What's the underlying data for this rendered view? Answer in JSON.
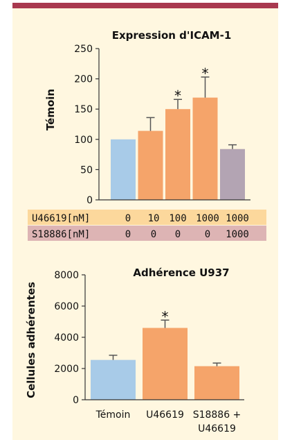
{
  "colors": {
    "top_bar": "#a8394f",
    "panel": "#fff7e0",
    "bar_control": "#a8cbe8",
    "bar_treatment": "#f5a46a",
    "bar_blocked": "#b3a4b3",
    "row_u46619": "#fcd89c",
    "row_s18886": "#ddb4b4"
  },
  "chart_data": [
    {
      "type": "bar",
      "title": "Expression d'ICAM-1",
      "ylabel": "Témoin",
      "ylim": [
        0,
        250
      ],
      "yticks": [
        0,
        50,
        100,
        150,
        200,
        250
      ],
      "values": [
        100,
        114,
        150,
        169,
        84
      ],
      "errors": [
        0,
        22,
        16,
        34,
        7
      ],
      "significant": [
        false,
        false,
        true,
        true,
        false
      ],
      "significance_label": "*",
      "bar_colors": [
        "#a8cbe8",
        "#f5a46a",
        "#f5a46a",
        "#f5a46a",
        "#b3a4b3"
      ],
      "table_rows": [
        {
          "label": "U46619[nM]",
          "values": [
            "0",
            "10",
            "100",
            "1000",
            "1000"
          ]
        },
        {
          "label": "S18886[nM]",
          "values": [
            "0",
            "0",
            "0",
            "0",
            "1000"
          ]
        }
      ]
    },
    {
      "type": "bar",
      "title": "Adhérence U937",
      "ylabel": "Cellules adhérentes",
      "ylim": [
        0,
        8000
      ],
      "yticks": [
        0,
        2000,
        4000,
        6000,
        8000
      ],
      "categories": [
        "Témoin",
        "U46619",
        "S18886 +"
      ],
      "category_sublabels": [
        "",
        "",
        "U46619"
      ],
      "values": [
        2550,
        4600,
        2150
      ],
      "errors": [
        300,
        500,
        200
      ],
      "significant": [
        false,
        true,
        false
      ],
      "significance_label": "*",
      "bar_colors": [
        "#a8cbe8",
        "#f5a46a",
        "#f5a46a"
      ]
    }
  ]
}
